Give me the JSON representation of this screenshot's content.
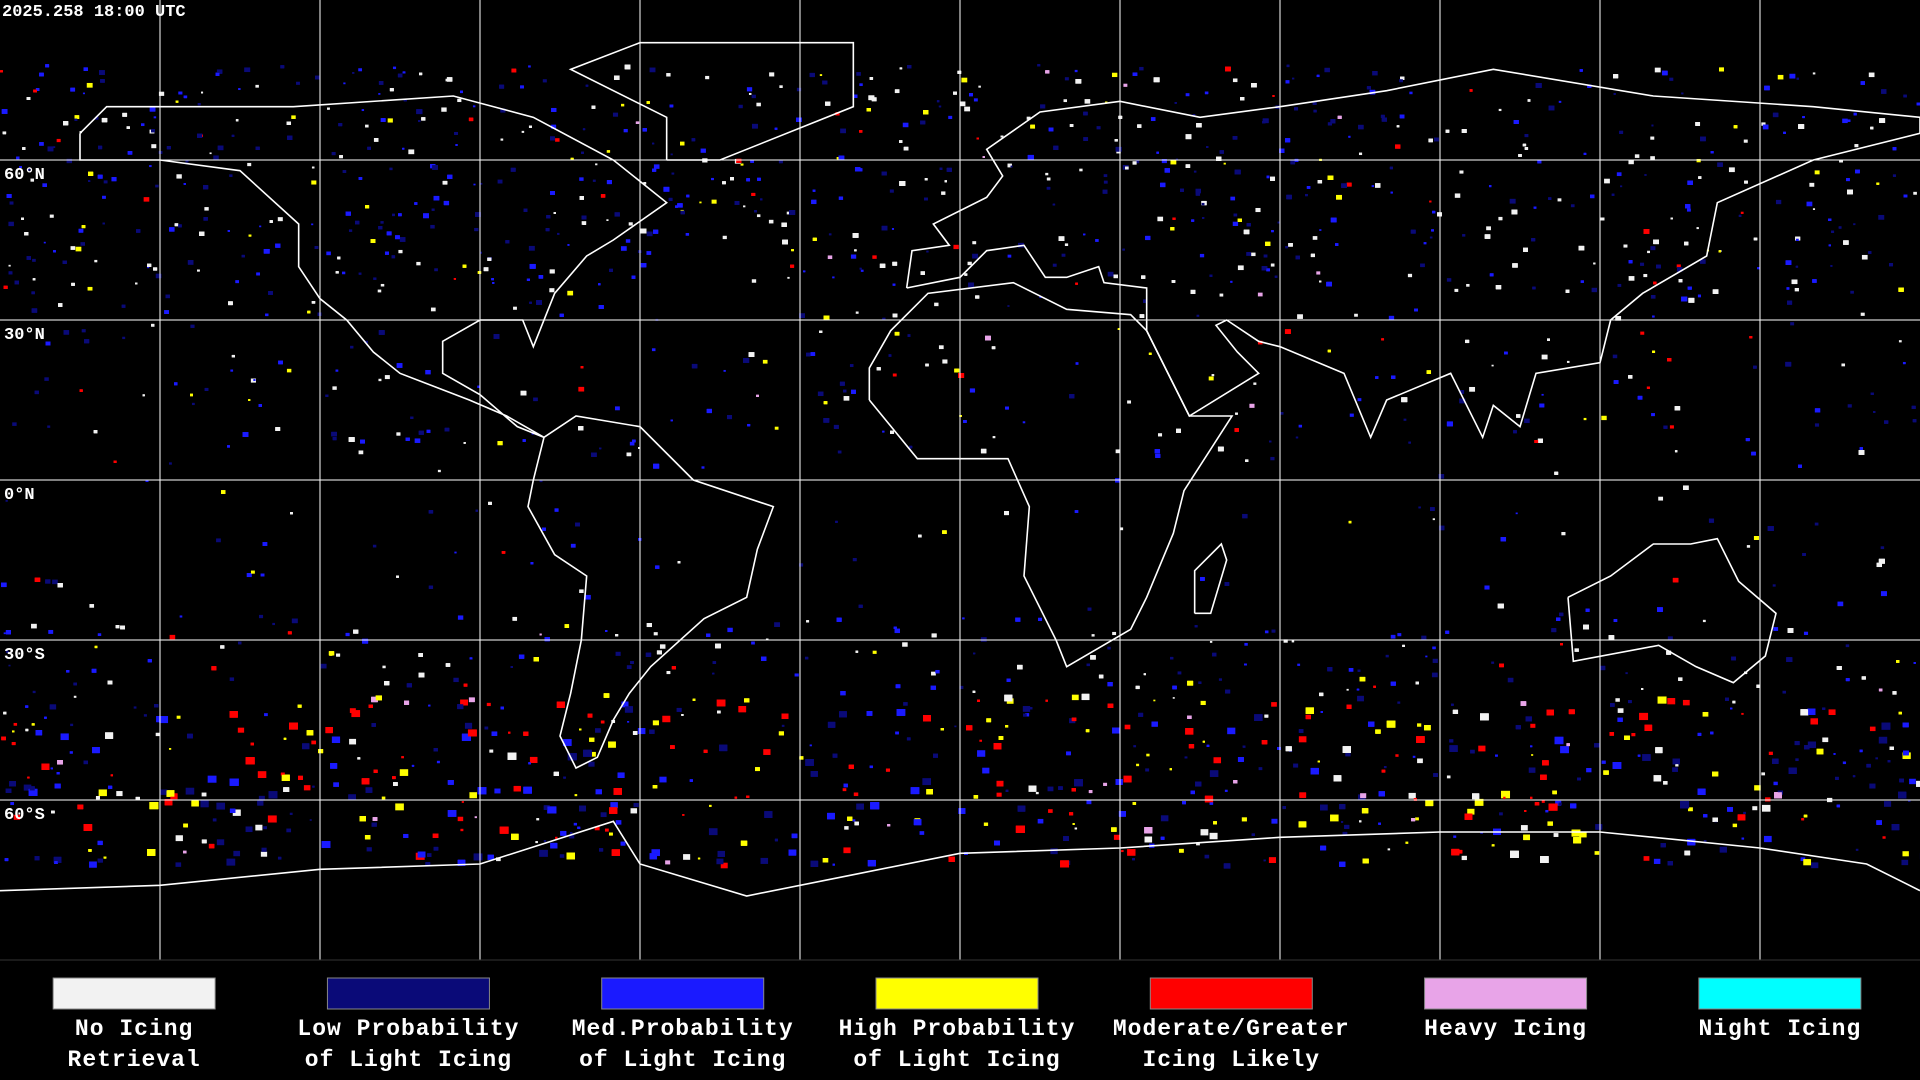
{
  "header": {
    "timestamp": "2025.258 18:00 UTC"
  },
  "map": {
    "lat_labels": [
      "60°N",
      "30°N",
      "0°N",
      "30°S",
      "60°S"
    ]
  },
  "legend": [
    {
      "line1": "No Icing",
      "line2": "Retrieval",
      "color": "#f2f2f2"
    },
    {
      "line1": "Low Probability",
      "line2": "of Light Icing",
      "color": "#0a0a78"
    },
    {
      "line1": "Med.Probability",
      "line2": "of Light Icing",
      "color": "#1a1aff"
    },
    {
      "line1": "High Probability",
      "line2": "of Light Icing",
      "color": "#ffff00"
    },
    {
      "line1": "Moderate/Greater",
      "line2": "Icing Likely",
      "color": "#ff0000"
    },
    {
      "line1": "Heavy Icing",
      "line2": "",
      "color": "#e8a4e8"
    },
    {
      "line1": "Night Icing",
      "line2": "",
      "color": "#00ffff"
    }
  ]
}
